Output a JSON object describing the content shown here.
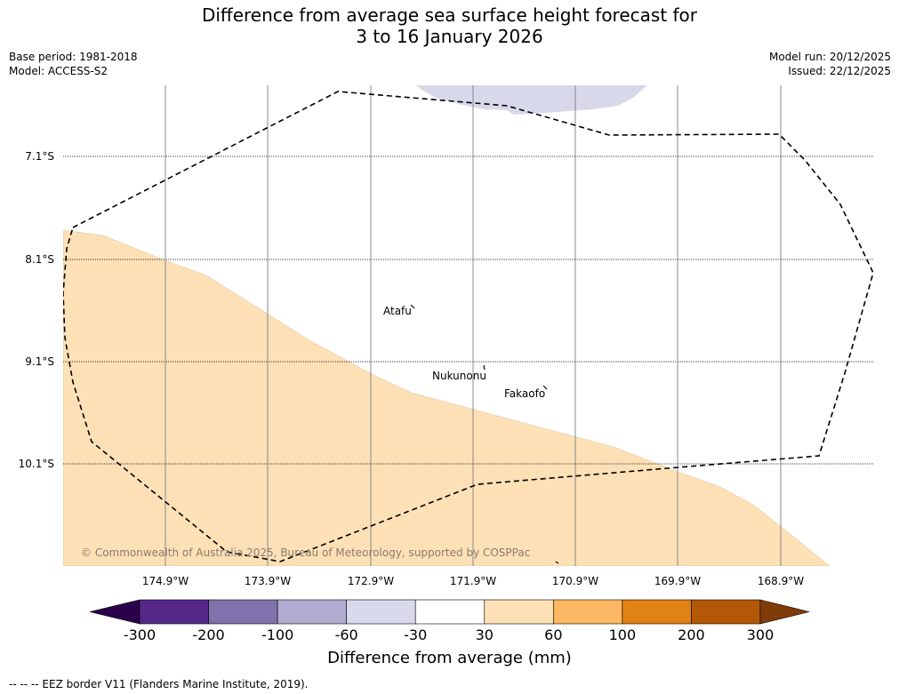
{
  "title": {
    "line1": "Difference from average sea surface height forecast for",
    "line2": "3 to 16 January 2026"
  },
  "meta": {
    "base_period": "Base period: 1981-2018",
    "model": "Model: ACCESS-S2",
    "model_run": "Model run: 20/12/2025",
    "issued": "Issued: 22/12/2025"
  },
  "map": {
    "lat_labels": [
      "7.1°S",
      "8.1°S",
      "9.1°S",
      "10.1°S"
    ],
    "lon_labels": [
      "174.9°W",
      "173.9°W",
      "172.9°W",
      "171.9°W",
      "170.9°W",
      "169.9°W",
      "168.9°W"
    ],
    "places": [
      "Atafu",
      "Nukunonu",
      "Fakaofo"
    ],
    "copyright": "© Commonwealth of Australia 2025, Bureau of Meteorology, supported by COSPPac",
    "colors": {
      "positive_30_60": "#fde0b6",
      "negative_30_60": "#d8d8eb",
      "eez_border": "#000000"
    }
  },
  "colorbar": {
    "tick_labels": [
      "-300",
      "-200",
      "-100",
      "-60",
      "-30",
      "30",
      "60",
      "100",
      "200",
      "300"
    ],
    "colors": [
      "#2d004b",
      "#542788",
      "#8073ac",
      "#b2abd2",
      "#d8daeb",
      "#ffffff",
      "#fee0b6",
      "#fdb863",
      "#e08214",
      "#b35806",
      "#7f3b08"
    ],
    "title": "Difference from average (mm)"
  },
  "footer": {
    "legend": "--  --  -- EEZ border V11 (Flanders Marine Institute, 2019)."
  }
}
